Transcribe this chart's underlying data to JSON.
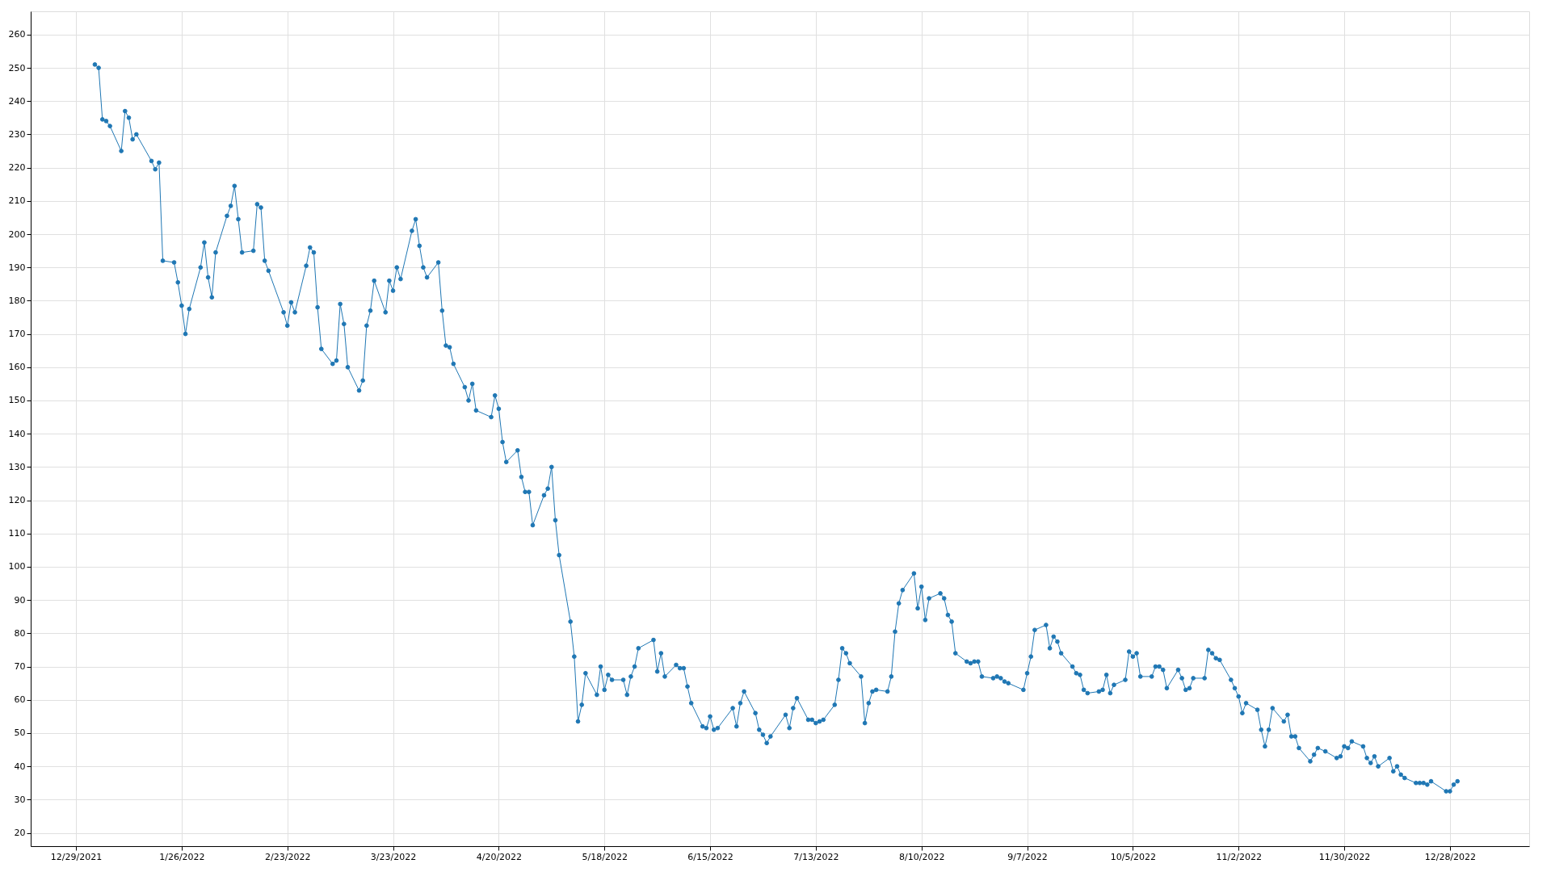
{
  "chart_data": {
    "type": "line",
    "marker": "circle",
    "line_style": "solid",
    "grid": true,
    "xlim": [
      "2021-12-17",
      "2023-01-18"
    ],
    "xticks": [
      {
        "value": "2021-12-29",
        "label": "12/29/2021"
      },
      {
        "value": "2022-01-26",
        "label": "1/26/2022"
      },
      {
        "value": "2022-02-23",
        "label": "2/23/2022"
      },
      {
        "value": "2022-03-23",
        "label": "3/23/2022"
      },
      {
        "value": "2022-04-20",
        "label": "4/20/2022"
      },
      {
        "value": "2022-05-18",
        "label": "5/18/2022"
      },
      {
        "value": "2022-06-15",
        "label": "6/15/2022"
      },
      {
        "value": "2022-07-13",
        "label": "7/13/2022"
      },
      {
        "value": "2022-08-10",
        "label": "8/10/2022"
      },
      {
        "value": "2022-09-07",
        "label": "9/7/2022"
      },
      {
        "value": "2022-10-05",
        "label": "10/5/2022"
      },
      {
        "value": "2022-11-02",
        "label": "11/2/2022"
      },
      {
        "value": "2022-11-30",
        "label": "11/30/2022"
      },
      {
        "value": "2022-12-28",
        "label": "12/28/2022"
      }
    ],
    "ylim": [
      16,
      267
    ],
    "yticks": [
      20,
      30,
      40,
      50,
      60,
      70,
      80,
      90,
      100,
      110,
      120,
      130,
      140,
      150,
      160,
      170,
      180,
      190,
      200,
      210,
      220,
      230,
      240,
      250,
      260
    ],
    "x": [
      "2022-01-03",
      "2022-01-04",
      "2022-01-05",
      "2022-01-06",
      "2022-01-07",
      "2022-01-10",
      "2022-01-11",
      "2022-01-12",
      "2022-01-13",
      "2022-01-14",
      "2022-01-18",
      "2022-01-19",
      "2022-01-20",
      "2022-01-21",
      "2022-01-24",
      "2022-01-25",
      "2022-01-26",
      "2022-01-27",
      "2022-01-28",
      "2022-01-31",
      "2022-02-01",
      "2022-02-02",
      "2022-02-03",
      "2022-02-04",
      "2022-02-07",
      "2022-02-08",
      "2022-02-09",
      "2022-02-10",
      "2022-02-11",
      "2022-02-14",
      "2022-02-15",
      "2022-02-16",
      "2022-02-17",
      "2022-02-18",
      "2022-02-22",
      "2022-02-23",
      "2022-02-24",
      "2022-02-25",
      "2022-02-28",
      "2022-03-01",
      "2022-03-02",
      "2022-03-03",
      "2022-03-04",
      "2022-03-07",
      "2022-03-08",
      "2022-03-09",
      "2022-03-10",
      "2022-03-11",
      "2022-03-14",
      "2022-03-15",
      "2022-03-16",
      "2022-03-17",
      "2022-03-18",
      "2022-03-21",
      "2022-03-22",
      "2022-03-23",
      "2022-03-24",
      "2022-03-25",
      "2022-03-28",
      "2022-03-29",
      "2022-03-30",
      "2022-03-31",
      "2022-04-01",
      "2022-04-04",
      "2022-04-05",
      "2022-04-06",
      "2022-04-07",
      "2022-04-08",
      "2022-04-11",
      "2022-04-12",
      "2022-04-13",
      "2022-04-14",
      "2022-04-18",
      "2022-04-19",
      "2022-04-20",
      "2022-04-21",
      "2022-04-22",
      "2022-04-25",
      "2022-04-26",
      "2022-04-27",
      "2022-04-28",
      "2022-04-29",
      "2022-05-02",
      "2022-05-03",
      "2022-05-04",
      "2022-05-05",
      "2022-05-06",
      "2022-05-09",
      "2022-05-10",
      "2022-05-11",
      "2022-05-12",
      "2022-05-13",
      "2022-05-16",
      "2022-05-17",
      "2022-05-18",
      "2022-05-19",
      "2022-05-20",
      "2022-05-23",
      "2022-05-24",
      "2022-05-25",
      "2022-05-26",
      "2022-05-27",
      "2022-05-31",
      "2022-06-01",
      "2022-06-02",
      "2022-06-03",
      "2022-06-06",
      "2022-06-07",
      "2022-06-08",
      "2022-06-09",
      "2022-06-10",
      "2022-06-13",
      "2022-06-14",
      "2022-06-15",
      "2022-06-16",
      "2022-06-17",
      "2022-06-21",
      "2022-06-22",
      "2022-06-23",
      "2022-06-24",
      "2022-06-27",
      "2022-06-28",
      "2022-06-29",
      "2022-06-30",
      "2022-07-01",
      "2022-07-05",
      "2022-07-06",
      "2022-07-07",
      "2022-07-08",
      "2022-07-11",
      "2022-07-12",
      "2022-07-13",
      "2022-07-14",
      "2022-07-15",
      "2022-07-18",
      "2022-07-19",
      "2022-07-20",
      "2022-07-21",
      "2022-07-22",
      "2022-07-25",
      "2022-07-26",
      "2022-07-27",
      "2022-07-28",
      "2022-07-29",
      "2022-08-01",
      "2022-08-02",
      "2022-08-03",
      "2022-08-04",
      "2022-08-05",
      "2022-08-08",
      "2022-08-09",
      "2022-08-10",
      "2022-08-11",
      "2022-08-12",
      "2022-08-15",
      "2022-08-16",
      "2022-08-17",
      "2022-08-18",
      "2022-08-19",
      "2022-08-22",
      "2022-08-23",
      "2022-08-24",
      "2022-08-25",
      "2022-08-26",
      "2022-08-29",
      "2022-08-30",
      "2022-08-31",
      "2022-09-01",
      "2022-09-02",
      "2022-09-06",
      "2022-09-07",
      "2022-09-08",
      "2022-09-09",
      "2022-09-12",
      "2022-09-13",
      "2022-09-14",
      "2022-09-15",
      "2022-09-16",
      "2022-09-19",
      "2022-09-20",
      "2022-09-21",
      "2022-09-22",
      "2022-09-23",
      "2022-09-26",
      "2022-09-27",
      "2022-09-28",
      "2022-09-29",
      "2022-09-30",
      "2022-10-03",
      "2022-10-04",
      "2022-10-05",
      "2022-10-06",
      "2022-10-07",
      "2022-10-10",
      "2022-10-11",
      "2022-10-12",
      "2022-10-13",
      "2022-10-14",
      "2022-10-17",
      "2022-10-18",
      "2022-10-19",
      "2022-10-20",
      "2022-10-21",
      "2022-10-24",
      "2022-10-25",
      "2022-10-26",
      "2022-10-27",
      "2022-10-28",
      "2022-10-31",
      "2022-11-01",
      "2022-11-02",
      "2022-11-03",
      "2022-11-04",
      "2022-11-07",
      "2022-11-08",
      "2022-11-09",
      "2022-11-10",
      "2022-11-11",
      "2022-11-14",
      "2022-11-15",
      "2022-11-16",
      "2022-11-17",
      "2022-11-18",
      "2022-11-21",
      "2022-11-22",
      "2022-11-23",
      "2022-11-25",
      "2022-11-28",
      "2022-11-29",
      "2022-11-30",
      "2022-12-01",
      "2022-12-02",
      "2022-12-05",
      "2022-12-06",
      "2022-12-07",
      "2022-12-08",
      "2022-12-09",
      "2022-12-12",
      "2022-12-13",
      "2022-12-14",
      "2022-12-15",
      "2022-12-16",
      "2022-12-19",
      "2022-12-20",
      "2022-12-21",
      "2022-12-22",
      "2022-12-23",
      "2022-12-27",
      "2022-12-28",
      "2022-12-29",
      "2022-12-30"
    ],
    "series": [
      {
        "color": "#1f77b4",
        "values": [
          251,
          250,
          234.5,
          234,
          232.5,
          225,
          237,
          235,
          228.5,
          230,
          222,
          219.5,
          221.5,
          192,
          191.5,
          185.5,
          178.5,
          170,
          177.5,
          190,
          197.5,
          187,
          181,
          194.5,
          205.5,
          208.5,
          214.5,
          204.5,
          194.5,
          195,
          209,
          208,
          192,
          189,
          176.5,
          172.5,
          179.5,
          176.5,
          190.5,
          196,
          194.5,
          178,
          165.5,
          161,
          162,
          179,
          173,
          160,
          153,
          156,
          172.5,
          177,
          186,
          176.5,
          186,
          183,
          190,
          186.5,
          201,
          204.5,
          196.5,
          190,
          187,
          191.5,
          177,
          166.5,
          166,
          161,
          154,
          150,
          155,
          147,
          145,
          151.5,
          147.5,
          137.5,
          131.5,
          135,
          127,
          122.5,
          122.5,
          112.5,
          121.5,
          123.5,
          130,
          114,
          103.5,
          83.5,
          73,
          53.5,
          58.5,
          68,
          61.5,
          70,
          63,
          67.5,
          66,
          66,
          61.5,
          67,
          70,
          75.5,
          78,
          68.5,
          74,
          67,
          70.5,
          69.5,
          69.5,
          64,
          59,
          52,
          51.5,
          55,
          51,
          51.5,
          57.5,
          52,
          59,
          62.5,
          56,
          51,
          49.5,
          47,
          49,
          55.5,
          51.5,
          57.5,
          60.5,
          54,
          54,
          53,
          53.5,
          54,
          58.5,
          66,
          75.5,
          74,
          71,
          67,
          53,
          59,
          62.5,
          63,
          62.5,
          67,
          80.5,
          89,
          93,
          98,
          87.5,
          94,
          84,
          90.5,
          92,
          90.5,
          85.5,
          83.5,
          74,
          71.5,
          71,
          71.5,
          71.5,
          67,
          66.5,
          67,
          66.5,
          65.5,
          65,
          63,
          68,
          73,
          81,
          82.5,
          75.5,
          79,
          77.5,
          74,
          70,
          68,
          67.5,
          63,
          62,
          62.5,
          63,
          67.5,
          62,
          64.5,
          66,
          74.5,
          73,
          74,
          67,
          67,
          70,
          70,
          69,
          63.5,
          69,
          66.5,
          63,
          63.5,
          66.5,
          66.5,
          75,
          74,
          72.5,
          72,
          66,
          63.5,
          61,
          56,
          59,
          57,
          51,
          46,
          51,
          57.5,
          53.5,
          55.5,
          49,
          49,
          45.5,
          41.5,
          43.5,
          45.5,
          44.5,
          42.5,
          43,
          46,
          45.5,
          47.5,
          46,
          42.5,
          41,
          43,
          40,
          42.5,
          38.5,
          40,
          37.5,
          36.5,
          35,
          35,
          35,
          34.5,
          35.5,
          32.5,
          32.5,
          34.5,
          35.5
        ]
      }
    ]
  }
}
